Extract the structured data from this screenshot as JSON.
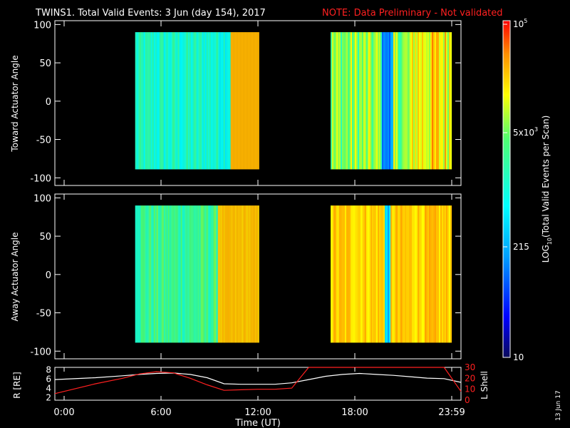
{
  "title": {
    "main": "TWINS1. Total Valid Events:  3 Jun (day 154), 2017",
    "note": "NOTE: Data Preliminary - Not validated",
    "note_color": "#ff2020"
  },
  "stamp": "13 Jun 17",
  "chart_data": [
    {
      "type": "heatmap",
      "name": "toward",
      "ylabel": "Toward Actuator Angle",
      "yticks": [
        100,
        50,
        0,
        -50,
        -100
      ],
      "ylim": [
        -110,
        105
      ],
      "xlim_hours": [
        0,
        24
      ],
      "data_blocks_hours": [
        [
          4.4,
          12.0
        ],
        [
          16.5,
          24.0
        ]
      ],
      "data_angle_range": [
        -89,
        90
      ],
      "colormap_range": [
        10,
        100000
      ]
    },
    {
      "type": "heatmap",
      "name": "away",
      "ylabel": "Away Actuator Angle",
      "yticks": [
        100,
        50,
        0,
        -50,
        -100
      ],
      "ylim": [
        -110,
        105
      ],
      "xlim_hours": [
        0,
        24
      ],
      "data_blocks_hours": [
        [
          4.4,
          12.0
        ],
        [
          16.5,
          24.0
        ]
      ],
      "data_angle_range": [
        -89,
        90
      ],
      "colormap_range": [
        10,
        100000
      ]
    },
    {
      "type": "line",
      "name": "ephemeris",
      "ylabel": "R [RE]",
      "y2label": "L Shell",
      "yticks": [
        "8",
        "6",
        "4",
        "2"
      ],
      "y2ticks": [
        "30",
        "20",
        "10",
        "0"
      ],
      "ylim": [
        1.5,
        8.5
      ],
      "y2lim": [
        0,
        30
      ],
      "x_hours": [
        0,
        2.4,
        4,
        5,
        6,
        7,
        8,
        9,
        10,
        11,
        12,
        13,
        14,
        15,
        16,
        17,
        18,
        19,
        20,
        21,
        22,
        23,
        24
      ],
      "series": [
        {
          "color": "#ffffff",
          "axis": "left",
          "values": [
            5.9,
            6.3,
            6.7,
            7.0,
            7.2,
            7.3,
            7.0,
            6.3,
            5.0,
            4.9,
            4.9,
            4.9,
            5.2,
            5.9,
            6.6,
            7.0,
            7.2,
            7.0,
            6.8,
            6.5,
            6.2,
            6.1,
            5.3
          ]
        },
        {
          "color": "#ff2020",
          "axis": "right",
          "values": [
            6.0,
            15.0,
            20.0,
            24.0,
            26.0,
            25.0,
            20.0,
            14.0,
            9.0,
            9.5,
            10.0,
            10.0,
            11.0,
            31.0,
            31.0,
            31.0,
            31.0,
            31.0,
            31.0,
            31.0,
            31.0,
            31.0,
            8.0
          ]
        }
      ]
    }
  ],
  "xaxis": {
    "ticks": [
      "0:00",
      "6:00",
      "12:00",
      "18:00",
      "23:59"
    ],
    "label": "Time (UT)"
  },
  "colorbar": {
    "ticks": [
      "10",
      "215",
      "5x10",
      "10"
    ],
    "superscripts": [
      "",
      "",
      "3",
      "5"
    ],
    "label_prefix": "LOG",
    "label_sub": "10",
    "label_suffix": "(Total Valid Events per Scan)"
  }
}
